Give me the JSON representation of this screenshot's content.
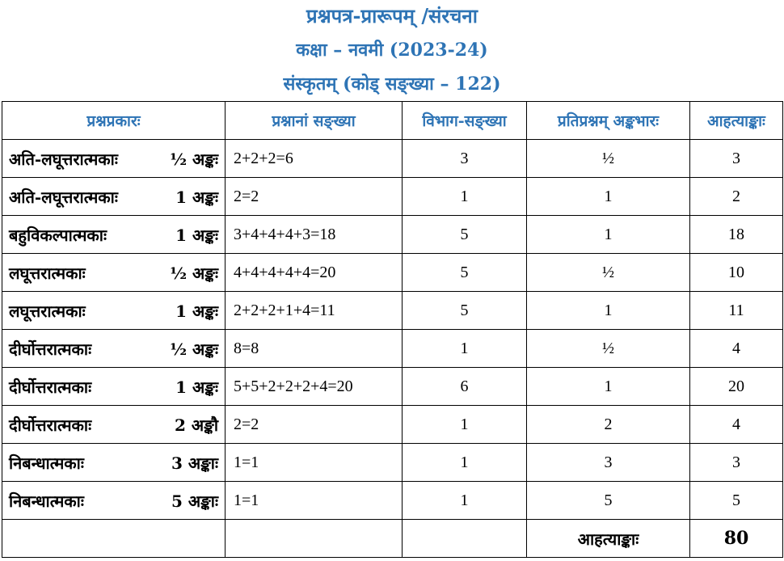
{
  "header": {
    "title": "प्रश्नपत्र-प्रारूपम् /संरचना",
    "class_line": "कक्षा – नवमी (2023-24)",
    "subject_line": "संस्कृतम्  (कोड् सङ्ख्या – 122)"
  },
  "table": {
    "columns": [
      "प्रश्नप्रकारः",
      "प्रश्नानां सङ्ख्या",
      "विभाग-सङ्ख्या",
      "प्रतिप्रश्नम् अङ्कभारः",
      "आहत्याङ्काः"
    ],
    "rows": [
      {
        "type": "अति-लघूत्तरात्मकाः",
        "marks": "½ अङ्कः",
        "count": "2+2+2=6",
        "sections": "3",
        "per_question": "½",
        "total": "3"
      },
      {
        "type": "अति-लघूत्तरात्मकाः",
        "marks": "1 अङ्कः",
        "count": "2=2",
        "sections": "1",
        "per_question": "1",
        "total": "2"
      },
      {
        "type": "बहुविकल्पात्मकाः",
        "marks": "1 अङ्कः",
        "count": "3+4+4+4+3=18",
        "sections": "5",
        "per_question": "1",
        "total": "18"
      },
      {
        "type": "लघूत्तरात्मकाः",
        "marks": "½ अङ्कः",
        "count": "4+4+4+4+4=20",
        "sections": "5",
        "per_question": "½",
        "total": "10"
      },
      {
        "type": "लघूत्तरात्मकाः",
        "marks": "1 अङ्कः",
        "count": "2+2+2+1+4=11",
        "sections": "5",
        "per_question": "1",
        "total": "11"
      },
      {
        "type": "दीर्घोत्तरात्मकाः",
        "marks": "½ अङ्कः",
        "count": "8=8",
        "sections": "1",
        "per_question": "½",
        "total": "4"
      },
      {
        "type": "दीर्घोत्तरात्मकाः",
        "marks": "1 अङ्कः",
        "count": "5+5+2+2+2+4=20",
        "sections": "6",
        "per_question": "1",
        "total": "20"
      },
      {
        "type": "दीर्घोत्तरात्मकाः",
        "marks": "2 अङ्कौ",
        "count": "2=2",
        "sections": "1",
        "per_question": "2",
        "total": "4"
      },
      {
        "type": "निबन्धात्मकाः",
        "marks": "3 अङ्काः",
        "count": "1=1",
        "sections": "1",
        "per_question": "3",
        "total": "3"
      },
      {
        "type": "निबन्धात्मकाः",
        "marks": "5 अङ्काः",
        "count": "1=1",
        "sections": "1",
        "per_question": "5",
        "total": "5"
      }
    ],
    "footer": {
      "label": "आहत्याङ्काः",
      "value": "80"
    }
  }
}
